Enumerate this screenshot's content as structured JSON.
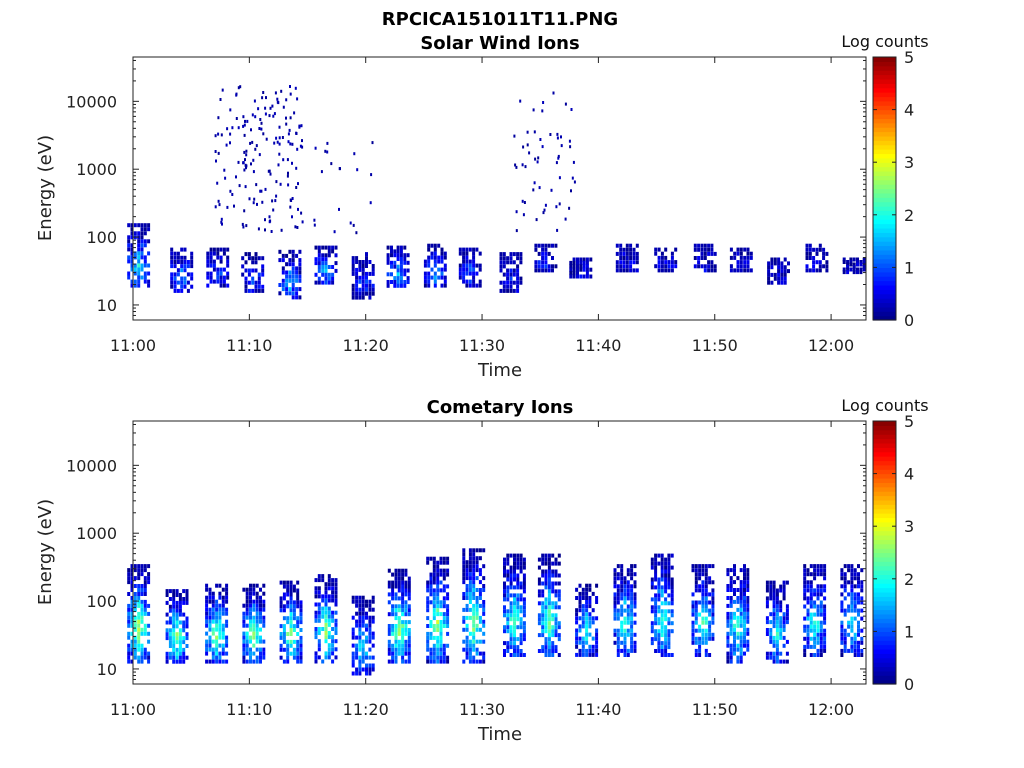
{
  "figure": {
    "title": "RPCICA151011T11.PNG"
  },
  "chart_data": [
    {
      "type": "heatmap",
      "title": "Solar Wind Ions",
      "xlabel": "Time",
      "ylabel": "Energy (eV)",
      "x_axis": {
        "range": [
          "11:00",
          "12:03"
        ],
        "ticks": [
          "11:00",
          "11:10",
          "11:20",
          "11:30",
          "11:40",
          "11:50",
          "12:00"
        ]
      },
      "y_axis": {
        "scale": "log",
        "range": [
          6,
          45000
        ],
        "ticks": [
          10,
          100,
          1000,
          10000
        ]
      },
      "colorbar": {
        "title": "Log counts",
        "range": [
          0,
          5
        ],
        "ticks": [
          0,
          1,
          2,
          3,
          4,
          5
        ],
        "colormap": "jet"
      },
      "sweeps": [
        {
          "t": 0.5,
          "lo": 18,
          "hi": 160,
          "peak": 1.8
        },
        {
          "t": 4.2,
          "lo": 15,
          "hi": 70,
          "peak": 1.4
        },
        {
          "t": 7.3,
          "lo": 18,
          "hi": 70,
          "peak": 1.0
        },
        {
          "t": 10.3,
          "lo": 15,
          "hi": 60,
          "peak": 1.0
        },
        {
          "t": 13.5,
          "lo": 12,
          "hi": 65,
          "peak": 1.6
        },
        {
          "t": 16.6,
          "lo": 20,
          "hi": 75,
          "peak": 1.5
        },
        {
          "t": 19.8,
          "lo": 12,
          "hi": 60,
          "peak": 0.9
        },
        {
          "t": 22.8,
          "lo": 18,
          "hi": 75,
          "peak": 1.4
        },
        {
          "t": 26.0,
          "lo": 18,
          "hi": 80,
          "peak": 1.5
        },
        {
          "t": 29.0,
          "lo": 18,
          "hi": 70,
          "peak": 1.0
        },
        {
          "t": 32.5,
          "lo": 15,
          "hi": 60,
          "peak": 0.6
        },
        {
          "t": 35.5,
          "lo": 30,
          "hi": 80,
          "peak": 0.8
        },
        {
          "t": 38.5,
          "lo": 25,
          "hi": 50,
          "peak": 0.5
        },
        {
          "t": 42.5,
          "lo": 30,
          "hi": 80,
          "peak": 0.6
        },
        {
          "t": 45.8,
          "lo": 30,
          "hi": 70,
          "peak": 0.5
        },
        {
          "t": 49.2,
          "lo": 30,
          "hi": 80,
          "peak": 0.6
        },
        {
          "t": 52.3,
          "lo": 30,
          "hi": 70,
          "peak": 0.5
        },
        {
          "t": 55.5,
          "lo": 20,
          "hi": 50,
          "peak": 0.4
        },
        {
          "t": 58.8,
          "lo": 30,
          "hi": 80,
          "peak": 0.5
        },
        {
          "t": 62.0,
          "lo": 30,
          "hi": 50,
          "peak": 0.4
        }
      ],
      "scatter_clusters": [
        {
          "t0": 7.0,
          "t1": 14.5,
          "lo": 120,
          "hi": 18000,
          "n": 170
        },
        {
          "t0": 15.5,
          "t1": 20.5,
          "lo": 120,
          "hi": 3000,
          "n": 20
        },
        {
          "t0": 32.5,
          "t1": 38.0,
          "lo": 100,
          "hi": 14000,
          "n": 55
        }
      ]
    },
    {
      "type": "heatmap",
      "title": "Cometary Ions",
      "xlabel": "Time",
      "ylabel": "Energy (eV)",
      "x_axis": {
        "range": [
          "11:00",
          "12:03"
        ],
        "ticks": [
          "11:00",
          "11:10",
          "11:20",
          "11:30",
          "11:40",
          "11:50",
          "12:00"
        ]
      },
      "y_axis": {
        "scale": "log",
        "range": [
          6,
          45000
        ],
        "ticks": [
          10,
          100,
          1000,
          10000
        ]
      },
      "colorbar": {
        "title": "Log counts",
        "range": [
          0,
          5
        ],
        "ticks": [
          0,
          1,
          2,
          3,
          4,
          5
        ],
        "colormap": "jet"
      },
      "sweeps": [
        {
          "t": 0.5,
          "lo": 12,
          "hi": 350,
          "peak": 2.8
        },
        {
          "t": 3.8,
          "lo": 12,
          "hi": 150,
          "peak": 2.6
        },
        {
          "t": 7.2,
          "lo": 12,
          "hi": 180,
          "peak": 2.6
        },
        {
          "t": 10.4,
          "lo": 12,
          "hi": 180,
          "peak": 2.6
        },
        {
          "t": 13.6,
          "lo": 12,
          "hi": 200,
          "peak": 2.6
        },
        {
          "t": 16.6,
          "lo": 12,
          "hi": 250,
          "peak": 2.6
        },
        {
          "t": 19.8,
          "lo": 8,
          "hi": 120,
          "peak": 1.8
        },
        {
          "t": 22.9,
          "lo": 12,
          "hi": 300,
          "peak": 2.8
        },
        {
          "t": 26.2,
          "lo": 12,
          "hi": 450,
          "peak": 2.7
        },
        {
          "t": 29.3,
          "lo": 12,
          "hi": 600,
          "peak": 2.6
        },
        {
          "t": 32.8,
          "lo": 15,
          "hi": 500,
          "peak": 2.2
        },
        {
          "t": 35.8,
          "lo": 15,
          "hi": 500,
          "peak": 2.4
        },
        {
          "t": 39.0,
          "lo": 15,
          "hi": 180,
          "peak": 2.0
        },
        {
          "t": 42.3,
          "lo": 15,
          "hi": 350,
          "peak": 2.2
        },
        {
          "t": 45.5,
          "lo": 15,
          "hi": 500,
          "peak": 2.2
        },
        {
          "t": 49.0,
          "lo": 15,
          "hi": 350,
          "peak": 2.2
        },
        {
          "t": 52.0,
          "lo": 12,
          "hi": 350,
          "peak": 2.2
        },
        {
          "t": 55.4,
          "lo": 12,
          "hi": 200,
          "peak": 2.0
        },
        {
          "t": 58.6,
          "lo": 15,
          "hi": 350,
          "peak": 2.1
        },
        {
          "t": 61.8,
          "lo": 15,
          "hi": 350,
          "peak": 2.0
        }
      ],
      "scatter_clusters": []
    }
  ]
}
